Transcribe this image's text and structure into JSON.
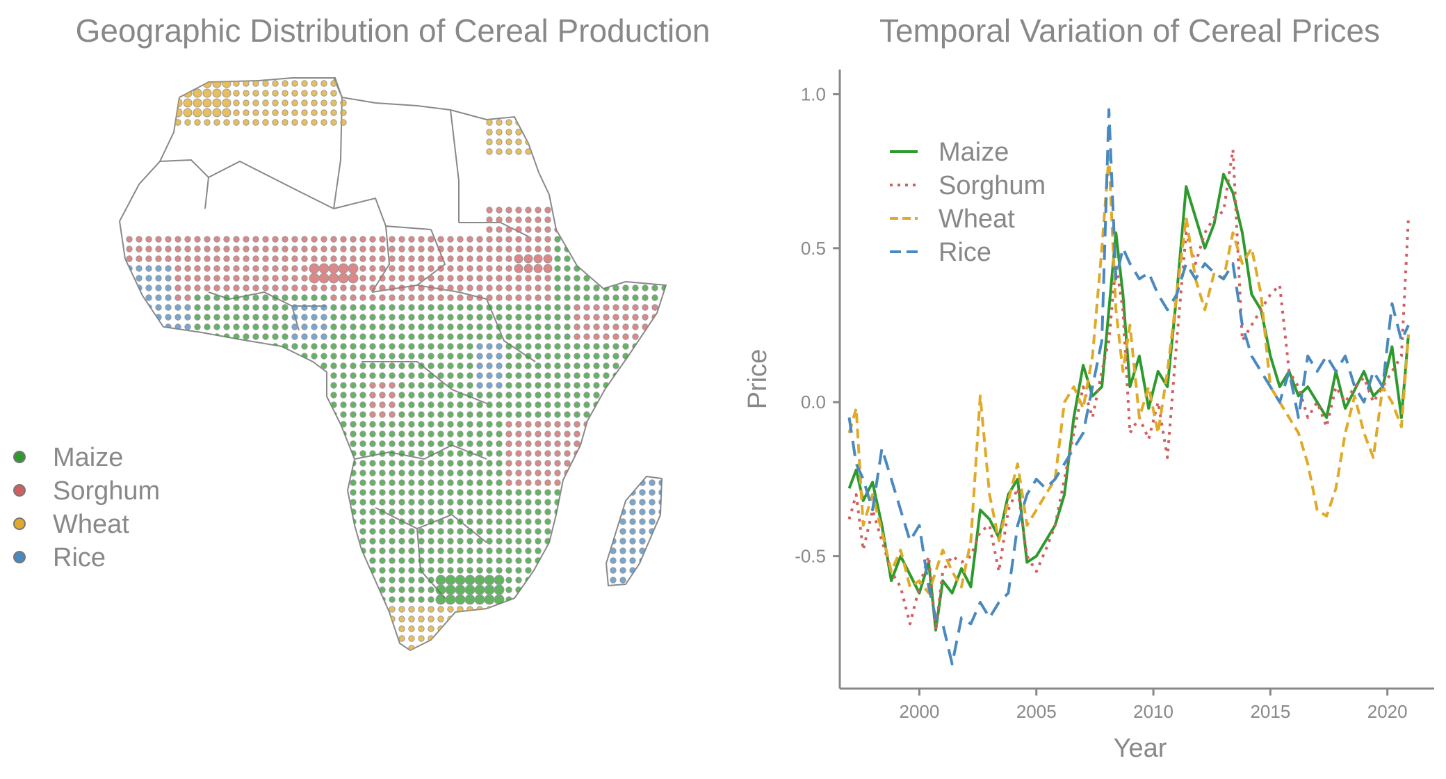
{
  "colors": {
    "maize": "#2e9a2e",
    "sorghum": "#d06060",
    "wheat": "#e0aa28",
    "rice": "#4a88c0",
    "axis": "#888888"
  },
  "map_panel": {
    "title": "Geographic Distribution of Cereal Production",
    "legend": [
      "Maize",
      "Sorghum",
      "Wheat",
      "Rice"
    ]
  },
  "chart_data": [
    {
      "type": "map",
      "title": "Geographic Distribution of Cereal Production",
      "legend": [
        {
          "name": "Maize",
          "color": "#2e9a2e"
        },
        {
          "name": "Sorghum",
          "color": "#d06060"
        },
        {
          "name": "Wheat",
          "color": "#e0aa28"
        },
        {
          "name": "Rice",
          "color": "#4a88c0"
        }
      ],
      "legend_position": "left"
    },
    {
      "type": "line",
      "title": "Temporal Variation of Cereal Prices",
      "xlabel": "Year",
      "ylabel": "Price",
      "xlim": [
        1996.6,
        2022.0
      ],
      "ylim": [
        -0.93,
        1.08
      ],
      "xticks": [
        2000,
        2005,
        2010,
        2015,
        2020
      ],
      "yticks": [
        -0.5,
        0.0,
        0.5,
        1.0
      ],
      "ytick_labels": [
        "-0.5",
        "0.0",
        "0.5",
        "1.0"
      ],
      "legend_position": "top-left",
      "series": [
        {
          "name": "Maize",
          "color": "#2e9a2e",
          "dash": "solid",
          "x": [
            1997.0,
            1997.3,
            1997.6,
            1998.0,
            1998.4,
            1998.8,
            1999.2,
            1999.6,
            2000.0,
            2000.4,
            2000.7,
            2001.0,
            2001.4,
            2001.8,
            2002.2,
            2002.6,
            2003.0,
            2003.4,
            2003.8,
            2004.2,
            2004.6,
            2005.0,
            2005.4,
            2005.8,
            2006.2,
            2006.6,
            2007.0,
            2007.4,
            2007.8,
            2008.1,
            2008.4,
            2008.7,
            2009.0,
            2009.4,
            2009.8,
            2010.2,
            2010.6,
            2011.0,
            2011.4,
            2011.8,
            2012.2,
            2012.6,
            2013.0,
            2013.4,
            2013.8,
            2014.2,
            2014.6,
            2015.0,
            2015.4,
            2015.8,
            2016.2,
            2016.6,
            2017.0,
            2017.4,
            2017.8,
            2018.2,
            2018.6,
            2019.0,
            2019.4,
            2019.8,
            2020.2,
            2020.6,
            2020.9
          ],
          "y": [
            -0.28,
            -0.22,
            -0.32,
            -0.26,
            -0.4,
            -0.58,
            -0.5,
            -0.56,
            -0.62,
            -0.52,
            -0.74,
            -0.58,
            -0.62,
            -0.54,
            -0.6,
            -0.35,
            -0.38,
            -0.44,
            -0.3,
            -0.25,
            -0.52,
            -0.5,
            -0.45,
            -0.4,
            -0.3,
            -0.05,
            0.12,
            0.02,
            0.05,
            0.3,
            0.55,
            0.35,
            0.05,
            0.15,
            -0.02,
            0.1,
            0.05,
            0.35,
            0.7,
            0.6,
            0.5,
            0.58,
            0.74,
            0.68,
            0.55,
            0.35,
            0.3,
            0.15,
            0.05,
            0.1,
            0.02,
            0.05,
            0.0,
            -0.05,
            0.1,
            -0.02,
            0.04,
            0.1,
            0.02,
            0.05,
            0.18,
            -0.05,
            0.22
          ]
        },
        {
          "name": "Sorghum",
          "color": "#d06060",
          "dash": "dotted",
          "x": [
            1997.0,
            1997.3,
            1997.6,
            1998.0,
            1998.4,
            1998.8,
            1999.2,
            1999.6,
            2000.0,
            2000.4,
            2000.7,
            2001.0,
            2001.4,
            2001.8,
            2002.2,
            2002.6,
            2003.0,
            2003.4,
            2003.8,
            2004.2,
            2004.6,
            2005.0,
            2005.4,
            2005.8,
            2006.2,
            2006.6,
            2007.0,
            2007.4,
            2007.8,
            2008.1,
            2008.4,
            2008.7,
            2009.0,
            2009.4,
            2009.8,
            2010.2,
            2010.6,
            2011.0,
            2011.4,
            2011.8,
            2012.2,
            2012.6,
            2013.0,
            2013.4,
            2013.8,
            2014.2,
            2014.6,
            2015.0,
            2015.4,
            2015.8,
            2016.2,
            2016.6,
            2017.0,
            2017.4,
            2017.8,
            2018.2,
            2018.6,
            2019.0,
            2019.4,
            2019.8,
            2020.2,
            2020.6,
            2020.9
          ],
          "y": [
            -0.38,
            -0.3,
            -0.48,
            -0.35,
            -0.45,
            -0.55,
            -0.6,
            -0.72,
            -0.6,
            -0.5,
            -0.74,
            -0.55,
            -0.5,
            -0.52,
            -0.5,
            -0.42,
            -0.4,
            -0.55,
            -0.35,
            -0.28,
            -0.5,
            -0.55,
            -0.48,
            -0.4,
            -0.25,
            -0.1,
            0.05,
            -0.05,
            0.1,
            0.2,
            0.45,
            0.3,
            -0.1,
            -0.05,
            -0.12,
            0.0,
            -0.18,
            0.2,
            0.55,
            0.45,
            0.55,
            0.6,
            0.62,
            0.82,
            0.2,
            0.25,
            0.3,
            0.35,
            0.38,
            0.1,
            0.05,
            -0.05,
            0.0,
            -0.08,
            0.05,
            0.0,
            0.05,
            0.08,
            0.0,
            0.05,
            0.1,
            0.15,
            0.6
          ]
        },
        {
          "name": "Wheat",
          "color": "#e0aa28",
          "dash": "dashed",
          "x": [
            1997.0,
            1997.3,
            1997.6,
            1998.0,
            1998.4,
            1998.8,
            1999.2,
            1999.6,
            2000.0,
            2000.4,
            2000.7,
            2001.0,
            2001.4,
            2001.8,
            2002.2,
            2002.6,
            2003.0,
            2003.4,
            2003.8,
            2004.2,
            2004.6,
            2005.0,
            2005.4,
            2005.8,
            2006.2,
            2006.6,
            2007.0,
            2007.4,
            2007.8,
            2008.1,
            2008.4,
            2008.7,
            2009.0,
            2009.4,
            2009.8,
            2010.2,
            2010.6,
            2011.0,
            2011.4,
            2011.8,
            2012.2,
            2012.6,
            2013.0,
            2013.4,
            2013.8,
            2014.2,
            2014.6,
            2015.0,
            2015.4,
            2015.8,
            2016.2,
            2016.6,
            2017.0,
            2017.4,
            2017.8,
            2018.2,
            2018.6,
            2019.0,
            2019.4,
            2019.8,
            2020.2,
            2020.6,
            2020.9
          ],
          "y": [
            -0.1,
            -0.02,
            -0.4,
            -0.3,
            -0.42,
            -0.55,
            -0.48,
            -0.6,
            -0.58,
            -0.62,
            -0.55,
            -0.48,
            -0.55,
            -0.6,
            -0.45,
            0.02,
            -0.3,
            -0.45,
            -0.32,
            -0.2,
            -0.4,
            -0.35,
            -0.3,
            -0.25,
            0.0,
            0.05,
            -0.02,
            0.15,
            0.5,
            0.8,
            0.3,
            0.1,
            0.25,
            -0.05,
            0.05,
            -0.1,
            0.1,
            0.35,
            0.6,
            0.4,
            0.3,
            0.42,
            0.4,
            0.55,
            0.45,
            0.5,
            0.35,
            0.05,
            0.0,
            -0.05,
            -0.1,
            -0.2,
            -0.35,
            -0.37,
            -0.28,
            -0.1,
            0.02,
            -0.1,
            -0.18,
            0.05,
            0.0,
            -0.08,
            0.22
          ]
        },
        {
          "name": "Rice",
          "color": "#4a88c0",
          "dash": "longdash",
          "x": [
            1997.0,
            1997.3,
            1997.6,
            1998.0,
            1998.4,
            1998.8,
            1999.2,
            1999.6,
            2000.0,
            2000.4,
            2000.7,
            2001.0,
            2001.4,
            2001.8,
            2002.2,
            2002.6,
            2003.0,
            2003.4,
            2003.8,
            2004.2,
            2004.6,
            2005.0,
            2005.4,
            2005.8,
            2006.2,
            2006.6,
            2007.0,
            2007.4,
            2007.8,
            2008.1,
            2008.4,
            2008.7,
            2009.0,
            2009.4,
            2009.8,
            2010.2,
            2010.6,
            2011.0,
            2011.4,
            2011.8,
            2012.2,
            2012.6,
            2013.0,
            2013.4,
            2013.8,
            2014.2,
            2014.6,
            2015.0,
            2015.4,
            2015.8,
            2016.2,
            2016.6,
            2017.0,
            2017.4,
            2017.8,
            2018.2,
            2018.6,
            2019.0,
            2019.4,
            2019.8,
            2020.2,
            2020.6,
            2020.9
          ],
          "y": [
            -0.05,
            -0.2,
            -0.25,
            -0.35,
            -0.15,
            -0.25,
            -0.35,
            -0.45,
            -0.4,
            -0.6,
            -0.7,
            -0.72,
            -0.85,
            -0.7,
            -0.72,
            -0.65,
            -0.7,
            -0.65,
            -0.62,
            -0.4,
            -0.3,
            -0.25,
            -0.28,
            -0.25,
            -0.2,
            -0.15,
            -0.1,
            0.05,
            0.2,
            0.95,
            0.4,
            0.5,
            0.45,
            0.4,
            0.42,
            0.35,
            0.3,
            0.35,
            0.45,
            0.4,
            0.45,
            0.42,
            0.4,
            0.45,
            0.25,
            0.15,
            0.1,
            0.05,
            0.0,
            0.1,
            -0.05,
            0.15,
            0.1,
            0.15,
            0.1,
            0.15,
            0.05,
            0.0,
            0.1,
            0.05,
            0.32,
            0.2,
            0.25
          ]
        }
      ]
    }
  ]
}
